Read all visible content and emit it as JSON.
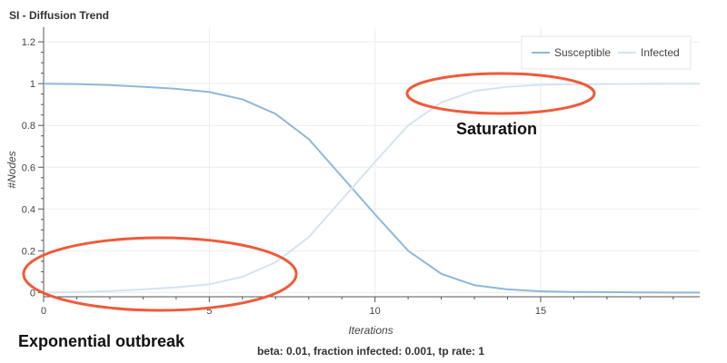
{
  "chart_data": {
    "type": "line",
    "title": "SI - Diffusion Trend",
    "xlabel": "Iterations",
    "ylabel": "#Nodes",
    "xlim": [
      0,
      19.8
    ],
    "ylim": [
      -0.02,
      1.27
    ],
    "xticks": [
      0,
      5,
      10,
      15
    ],
    "yticks": [
      0,
      0.2,
      0.4,
      0.6,
      0.8,
      1,
      1.2
    ],
    "grid": true,
    "legend_position": "top-right",
    "x": [
      0,
      1,
      2,
      3,
      4,
      5,
      6,
      7,
      8,
      9,
      10,
      11,
      12,
      13,
      14,
      15,
      16,
      17,
      18,
      19,
      20
    ],
    "series": [
      {
        "name": "Susceptible",
        "color": "#8fb8d9",
        "values": [
          1.0,
          0.998,
          0.993,
          0.985,
          0.975,
          0.96,
          0.925,
          0.855,
          0.735,
          0.555,
          0.375,
          0.2,
          0.09,
          0.035,
          0.015,
          0.006,
          0.003,
          0.002,
          0.001,
          0.0,
          0.0
        ]
      },
      {
        "name": "Infected",
        "color": "#d4e3f2",
        "values": [
          0.0,
          0.002,
          0.007,
          0.015,
          0.025,
          0.04,
          0.075,
          0.145,
          0.265,
          0.445,
          0.625,
          0.8,
          0.91,
          0.965,
          0.985,
          0.994,
          0.997,
          0.998,
          0.999,
          1.0,
          1.0
        ]
      }
    ],
    "annotations": [
      {
        "text": "Exponential outbreak",
        "color": "#f05a3a"
      },
      {
        "text": "Saturation",
        "color": "#f05a3a"
      }
    ],
    "caption": "beta: 0.01, fraction infected: 0.001, tp rate: 1"
  }
}
